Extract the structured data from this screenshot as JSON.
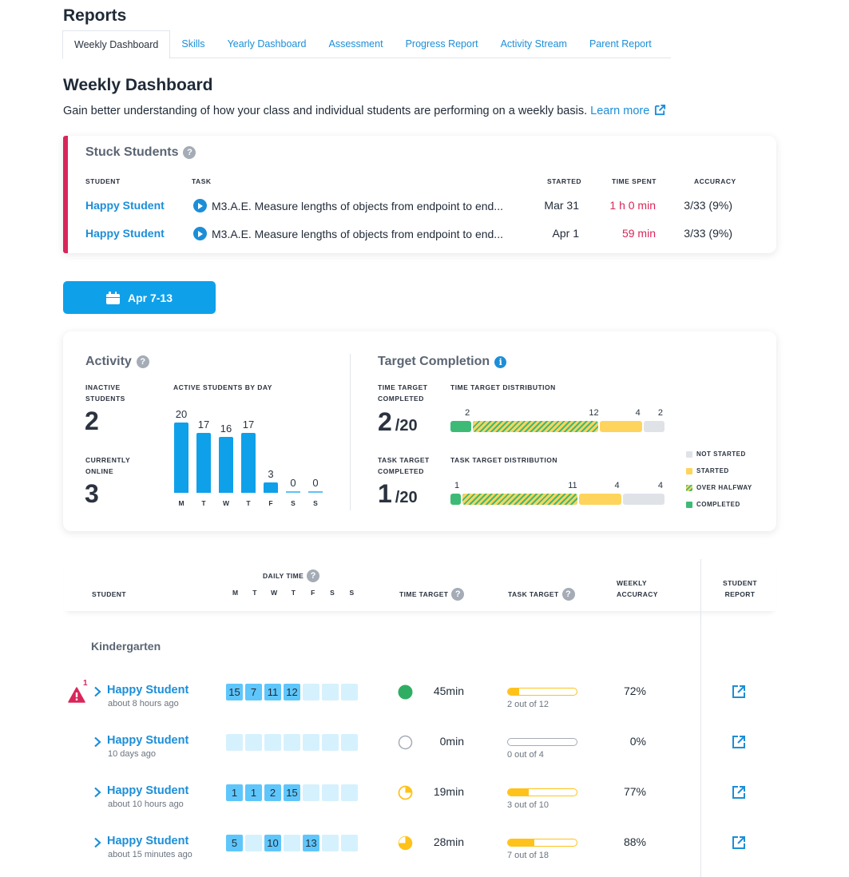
{
  "page_title": "Reports",
  "tabs": [
    {
      "label": "Weekly Dashboard",
      "active": true
    },
    {
      "label": "Skills",
      "active": false
    },
    {
      "label": "Yearly Dashboard",
      "active": false
    },
    {
      "label": "Assessment",
      "active": false
    },
    {
      "label": "Progress Report",
      "active": false
    },
    {
      "label": "Activity Stream",
      "active": false
    },
    {
      "label": "Parent Report",
      "active": false
    }
  ],
  "dashboard": {
    "title": "Weekly Dashboard",
    "description": "Gain better understanding of how your class and individual students are performing on a weekly basis.",
    "learn_more": "Learn more"
  },
  "stuck_students": {
    "title": "Stuck Students",
    "columns": {
      "student": "STUDENT",
      "task": "TASK",
      "started": "STARTED",
      "time_spent": "TIME SPENT",
      "accuracy": "ACCURACY"
    },
    "rows": [
      {
        "student": "Happy Student",
        "task": "M3.A.E.  Measure lengths of objects from endpoint to end...",
        "started": "Mar 31",
        "time_spent": "1 h 0 min",
        "accuracy": "3/33 (9%)"
      },
      {
        "student": "Happy Student",
        "task": "M3.A.E.  Measure lengths of objects from endpoint to end...",
        "started": "Apr 1",
        "time_spent": "59 min",
        "accuracy": "3/33 (9%)"
      }
    ]
  },
  "date_range": {
    "label": "Apr 7-13",
    "icon": "calendar-icon"
  },
  "activity": {
    "title": "Activity",
    "inactive_label_1": "INACTIVE",
    "inactive_label_2": "STUDENTS",
    "inactive_value": "2",
    "online_label_1": "CURRENTLY",
    "online_label_2": "ONLINE",
    "online_value": "3",
    "chart_title": "ACTIVE STUDENTS BY DAY"
  },
  "chart_data": {
    "type": "bar",
    "title": "ACTIVE STUDENTS BY DAY",
    "categories": [
      "M",
      "T",
      "W",
      "T",
      "F",
      "S",
      "S"
    ],
    "values": [
      20,
      17,
      16,
      17,
      3,
      0,
      0
    ],
    "xlabel": "",
    "ylabel": "",
    "ylim": [
      0,
      20
    ]
  },
  "target_completion": {
    "title": "Target Completion",
    "time_label_1": "TIME TARGET",
    "time_label_2": "COMPLETED",
    "time_completed": "2",
    "time_total": "/20",
    "time_dist_title": "TIME TARGET DISTRIBUTION",
    "time_distribution": {
      "completed": 2,
      "over_halfway": 12,
      "started": 4,
      "not_started": 2
    },
    "task_label_1": "TASK TARGET",
    "task_label_2": "COMPLETED",
    "task_completed": "1",
    "task_total": "/20",
    "task_dist_title": "TASK TARGET DISTRIBUTION",
    "task_distribution": {
      "completed": 1,
      "over_halfway": 11,
      "started": 4,
      "not_started": 4
    },
    "legend": [
      {
        "label": "NOT STARTED",
        "color": "#dfe3e8"
      },
      {
        "label": "STARTED",
        "color": "#ffd45c"
      },
      {
        "label": "OVER HALFWAY",
        "color": "striped"
      },
      {
        "label": "COMPLETED",
        "color": "#3dbb76"
      }
    ]
  },
  "table": {
    "headers": {
      "student": "STUDENT",
      "daily_time": "DAILY TIME",
      "days": [
        "M",
        "T",
        "W",
        "T",
        "F",
        "S",
        "S"
      ],
      "time_target": "TIME TARGET",
      "task_target": "TASK TARGET",
      "weekly_1": "WEEKLY",
      "weekly_2": "ACCURACY",
      "report_1": "STUDENT",
      "report_2": "REPORT"
    },
    "group": "Kindergarten",
    "rows": [
      {
        "name": "Happy Student",
        "last_seen": "about 8 hours ago",
        "alert_count": "1",
        "daily": [
          "15",
          "7",
          "11",
          "12",
          "",
          "",
          ""
        ],
        "time_status": "complete",
        "time_value": "45min",
        "task_done": 2,
        "task_total": 12,
        "task_text": "2 out of 12",
        "accuracy": "72%"
      },
      {
        "name": "Happy Student",
        "last_seen": "10 days ago",
        "alert_count": "",
        "daily": [
          "",
          "",
          "",
          "",
          "",
          "",
          ""
        ],
        "time_status": "none",
        "time_value": "0min",
        "task_done": 0,
        "task_total": 4,
        "task_text": "0 out of 4",
        "accuracy": "0%"
      },
      {
        "name": "Happy Student",
        "last_seen": "about  10 hours ago",
        "alert_count": "",
        "daily": [
          "1",
          "1",
          "2",
          "15",
          "",
          "",
          ""
        ],
        "time_status": "quarter",
        "time_value": "19min",
        "task_done": 3,
        "task_total": 10,
        "task_text": "3 out of 10",
        "accuracy": "77%"
      },
      {
        "name": "Happy Student",
        "last_seen": "about 15 minutes ago",
        "alert_count": "",
        "daily": [
          "5",
          "",
          "10",
          "",
          "13",
          "",
          ""
        ],
        "time_status": "threequarter",
        "time_value": "28min",
        "task_done": 7,
        "task_total": 18,
        "task_text": "7 out of 18",
        "accuracy": "88%"
      }
    ]
  },
  "colors": {
    "accent": "#1c8ed8",
    "alert": "#d9265a",
    "button": "#0fa0ea",
    "complete": "#3dbb76",
    "started": "#ffd45c"
  }
}
